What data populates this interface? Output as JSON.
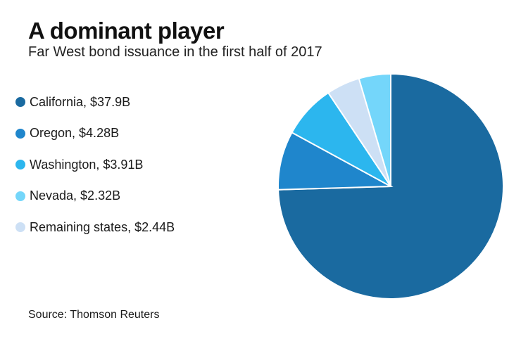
{
  "header": {
    "title": "A dominant player",
    "subtitle": "Far West bond issuance in the first half of 2017"
  },
  "legend": {
    "items": [
      {
        "label": "California, $37.9B",
        "color": "#1a6aa0"
      },
      {
        "label": "Oregon, $4.28B",
        "color": "#1f86cc"
      },
      {
        "label": "Washington, $3.91B",
        "color": "#2cb6ee"
      },
      {
        "label": "Nevada, $2.32B",
        "color": "#74d6fa"
      },
      {
        "label": "Remaining states, $2.44B",
        "color": "#cde0f5"
      }
    ]
  },
  "footer": {
    "source": "Source: Thomson Reuters"
  },
  "chart_data": {
    "type": "pie",
    "title": "A dominant player",
    "subtitle": "Far West bond issuance in the first half of 2017",
    "categories": [
      "California",
      "Oregon",
      "Washington",
      "Remaining states",
      "Nevada"
    ],
    "values": [
      37.9,
      4.28,
      3.91,
      2.44,
      2.32
    ],
    "unit": "$B",
    "colors": [
      "#1a6aa0",
      "#1f86cc",
      "#2cb6ee",
      "#cde0f5",
      "#74d6fa"
    ],
    "legend_position": "left"
  }
}
